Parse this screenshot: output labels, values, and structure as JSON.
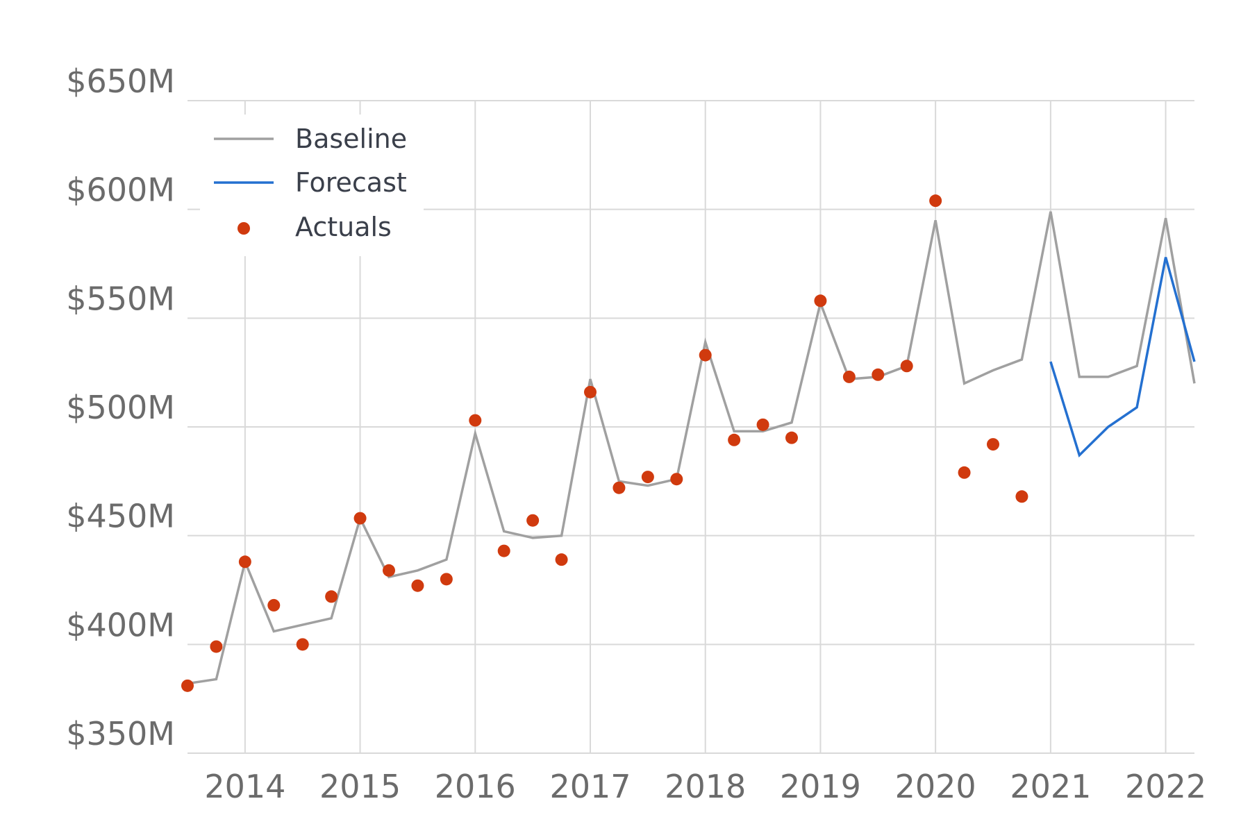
{
  "chart_data": {
    "type": "line",
    "title": "",
    "xlabel": "",
    "ylabel": "",
    "x_ticks": [
      "2014",
      "2015",
      "2016",
      "2017",
      "2018",
      "2019",
      "2020",
      "2021",
      "2022"
    ],
    "y_ticks": [
      "$350M",
      "$400M",
      "$450M",
      "$500M",
      "$550M",
      "$600M",
      "$650M"
    ],
    "y_tick_values": [
      350,
      400,
      450,
      500,
      550,
      600,
      650
    ],
    "xlim": [
      2013.5,
      2022.25
    ],
    "ylim": [
      350,
      650
    ],
    "grid": true,
    "legend": {
      "position": "top-left",
      "entries": [
        "Baseline",
        "Forecast",
        "Actuals"
      ]
    },
    "series": [
      {
        "name": "Baseline",
        "type": "line",
        "color": "#a0a0a0",
        "x": [
          2013.5,
          2013.75,
          2014.0,
          2014.25,
          2014.5,
          2014.75,
          2015.0,
          2015.25,
          2015.5,
          2015.75,
          2016.0,
          2016.25,
          2016.5,
          2016.75,
          2017.0,
          2017.25,
          2017.5,
          2017.75,
          2018.0,
          2018.25,
          2018.5,
          2018.75,
          2019.0,
          2019.25,
          2019.5,
          2019.75,
          2020.0,
          2020.25,
          2020.5,
          2020.75,
          2021.0,
          2021.25,
          2021.5,
          2021.75,
          2022.0,
          2022.25
        ],
        "y": [
          382,
          384,
          438,
          406,
          409,
          412,
          458,
          431,
          434,
          439,
          497,
          452,
          449,
          450,
          522,
          475,
          473,
          476,
          539,
          498,
          498,
          502,
          557,
          522,
          523,
          528,
          595,
          520,
          526,
          531,
          599,
          523,
          523,
          528,
          596,
          520
        ]
      },
      {
        "name": "Forecast",
        "type": "line",
        "color": "#2470d0",
        "x": [
          2021.0,
          2021.25,
          2021.5,
          2021.75,
          2022.0,
          2022.25
        ],
        "y": [
          530,
          487,
          500,
          509,
          578,
          530
        ]
      },
      {
        "name": "Actuals",
        "type": "scatter",
        "color": "#d03a0e",
        "x": [
          2013.5,
          2013.75,
          2014.0,
          2014.25,
          2014.5,
          2014.75,
          2015.0,
          2015.25,
          2015.5,
          2015.75,
          2016.0,
          2016.25,
          2016.5,
          2016.75,
          2017.0,
          2017.25,
          2017.5,
          2017.75,
          2018.0,
          2018.25,
          2018.5,
          2018.75,
          2019.0,
          2019.25,
          2019.5,
          2019.75,
          2020.0,
          2020.25,
          2020.5,
          2020.75
        ],
        "y": [
          381,
          399,
          438,
          418,
          400,
          422,
          458,
          434,
          427,
          430,
          503,
          443,
          457,
          439,
          516,
          472,
          477,
          476,
          533,
          494,
          501,
          495,
          558,
          523,
          524,
          528,
          604,
          479,
          492,
          468
        ]
      }
    ]
  }
}
